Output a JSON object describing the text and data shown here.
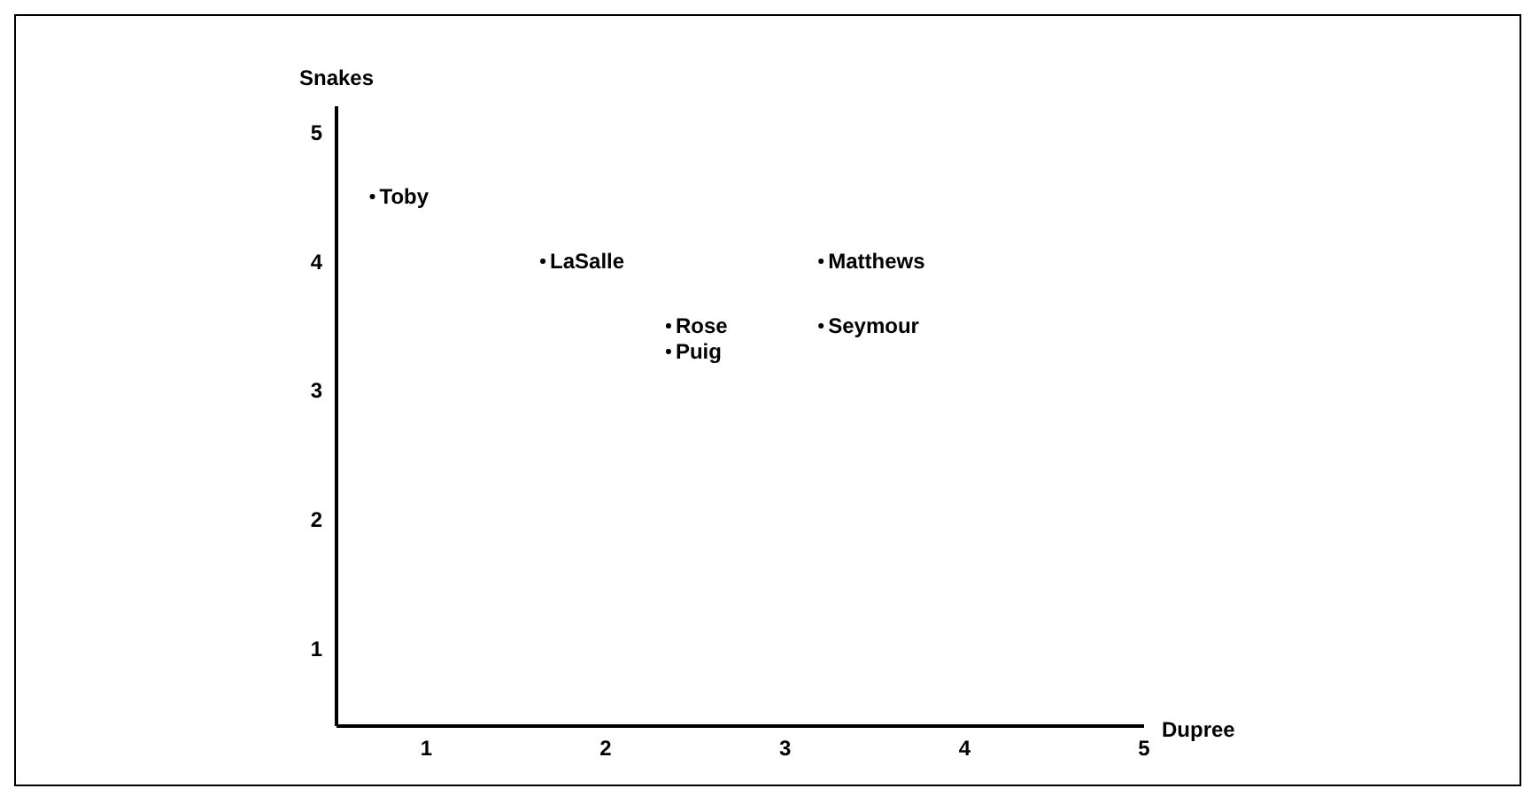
{
  "chart_data": {
    "type": "scatter",
    "xlabel": "Dupree",
    "ylabel": "Snakes",
    "x": [
      0.7,
      1.65,
      3.2,
      2.35,
      3.2,
      2.35
    ],
    "values": [
      4.5,
      4.0,
      4.0,
      3.5,
      3.5,
      3.3
    ],
    "value_labels": [
      "Toby",
      "LaSalle",
      "Matthews",
      "Rose",
      "Seymour",
      "Puig"
    ],
    "marker": "circle",
    "color": "#000000",
    "xlim": [
      0.5,
      5
    ],
    "xticks": [
      1,
      2,
      3,
      4,
      5
    ],
    "ylim": [
      0.4,
      5.2
    ],
    "yticks": [
      1,
      2,
      3,
      4,
      5
    ],
    "grid": false,
    "legend": false
  }
}
